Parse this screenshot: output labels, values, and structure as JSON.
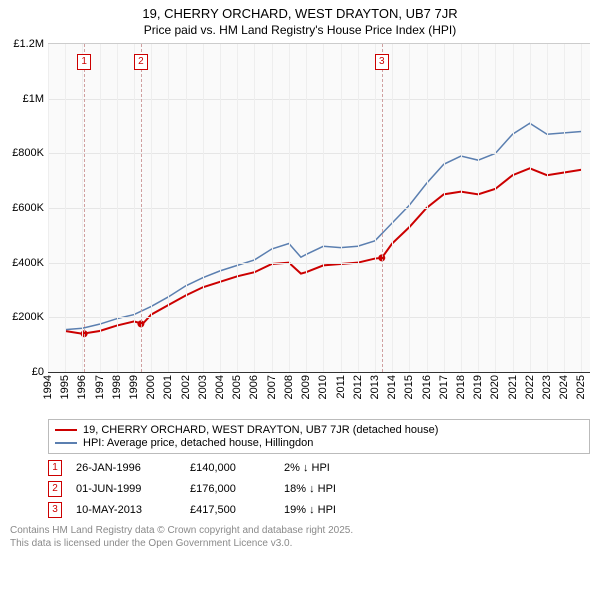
{
  "title": {
    "main": "19, CHERRY ORCHARD, WEST DRAYTON, UB7 7JR",
    "sub": "Price paid vs. HM Land Registry's House Price Index (HPI)"
  },
  "chart": {
    "type": "line",
    "background_color": "#fafafa",
    "grid_color": "#e6e6e6",
    "x": {
      "min": 1994,
      "max": 2025.5,
      "ticks": [
        1994,
        1995,
        1996,
        1997,
        1998,
        1999,
        2000,
        2001,
        2002,
        2003,
        2004,
        2005,
        2006,
        2007,
        2008,
        2009,
        2010,
        2011,
        2012,
        2013,
        2014,
        2015,
        2016,
        2017,
        2018,
        2019,
        2020,
        2021,
        2022,
        2023,
        2024,
        2025
      ]
    },
    "y": {
      "min": 0,
      "max": 1200000,
      "ticks": [
        {
          "v": 0,
          "label": "£0"
        },
        {
          "v": 200000,
          "label": "£200K"
        },
        {
          "v": 400000,
          "label": "£400K"
        },
        {
          "v": 600000,
          "label": "£600K"
        },
        {
          "v": 800000,
          "label": "£800K"
        },
        {
          "v": 1000000,
          "label": "£1M"
        },
        {
          "v": 1200000,
          "label": "£1.2M"
        }
      ]
    },
    "marker_lines": [
      {
        "label": "1",
        "x": 1996.1
      },
      {
        "label": "2",
        "x": 1999.4
      },
      {
        "label": "3",
        "x": 2013.4
      }
    ],
    "series": [
      {
        "name": "property",
        "label": "19, CHERRY ORCHARD, WEST DRAYTON, UB7 7JR (detached house)",
        "color": "#cc0000",
        "width": 2,
        "points": [
          [
            1995,
            150000
          ],
          [
            1996,
            140000
          ],
          [
            1997,
            150000
          ],
          [
            1998,
            170000
          ],
          [
            1999,
            185000
          ],
          [
            1999.5,
            176000
          ],
          [
            2000,
            210000
          ],
          [
            2001,
            245000
          ],
          [
            2002,
            280000
          ],
          [
            2003,
            310000
          ],
          [
            2004,
            330000
          ],
          [
            2005,
            350000
          ],
          [
            2006,
            365000
          ],
          [
            2007,
            395000
          ],
          [
            2008,
            400000
          ],
          [
            2008.7,
            360000
          ],
          [
            2009,
            365000
          ],
          [
            2010,
            390000
          ],
          [
            2011,
            395000
          ],
          [
            2012,
            400000
          ],
          [
            2013,
            415000
          ],
          [
            2013.4,
            417500
          ],
          [
            2014,
            470000
          ],
          [
            2015,
            530000
          ],
          [
            2016,
            600000
          ],
          [
            2017,
            650000
          ],
          [
            2018,
            660000
          ],
          [
            2019,
            650000
          ],
          [
            2020,
            670000
          ],
          [
            2021,
            720000
          ],
          [
            2022,
            745000
          ],
          [
            2023,
            720000
          ],
          [
            2024,
            730000
          ],
          [
            2025,
            740000
          ]
        ],
        "markers": [
          [
            1996.1,
            140000
          ],
          [
            1999.4,
            176000
          ],
          [
            2013.4,
            417500
          ]
        ]
      },
      {
        "name": "hpi",
        "label": "HPI: Average price, detached house, Hillingdon",
        "color": "#5b7fb0",
        "width": 1.5,
        "points": [
          [
            1995,
            155000
          ],
          [
            1996,
            160000
          ],
          [
            1997,
            175000
          ],
          [
            1998,
            195000
          ],
          [
            1999,
            210000
          ],
          [
            2000,
            240000
          ],
          [
            2001,
            275000
          ],
          [
            2002,
            315000
          ],
          [
            2003,
            345000
          ],
          [
            2004,
            370000
          ],
          [
            2005,
            390000
          ],
          [
            2006,
            410000
          ],
          [
            2007,
            450000
          ],
          [
            2008,
            470000
          ],
          [
            2008.7,
            420000
          ],
          [
            2009,
            430000
          ],
          [
            2010,
            460000
          ],
          [
            2011,
            455000
          ],
          [
            2012,
            460000
          ],
          [
            2013,
            480000
          ],
          [
            2014,
            545000
          ],
          [
            2015,
            610000
          ],
          [
            2016,
            690000
          ],
          [
            2017,
            760000
          ],
          [
            2018,
            790000
          ],
          [
            2019,
            775000
          ],
          [
            2020,
            800000
          ],
          [
            2021,
            870000
          ],
          [
            2022,
            910000
          ],
          [
            2023,
            870000
          ],
          [
            2024,
            875000
          ],
          [
            2025,
            880000
          ]
        ]
      }
    ]
  },
  "legend": {
    "rows": [
      {
        "color": "#cc0000",
        "label": "19, CHERRY ORCHARD, WEST DRAYTON, UB7 7JR (detached house)"
      },
      {
        "color": "#5b7fb0",
        "label": "HPI: Average price, detached house, Hillingdon"
      }
    ]
  },
  "events": [
    {
      "idx": "1",
      "date": "26-JAN-1996",
      "price": "£140,000",
      "delta": "2% ↓ HPI"
    },
    {
      "idx": "2",
      "date": "01-JUN-1999",
      "price": "£176,000",
      "delta": "18% ↓ HPI"
    },
    {
      "idx": "3",
      "date": "10-MAY-2013",
      "price": "£417,500",
      "delta": "19% ↓ HPI"
    }
  ],
  "footer": {
    "line1": "Contains HM Land Registry data © Crown copyright and database right 2025.",
    "line2": "This data is licensed under the Open Government Licence v3.0."
  }
}
